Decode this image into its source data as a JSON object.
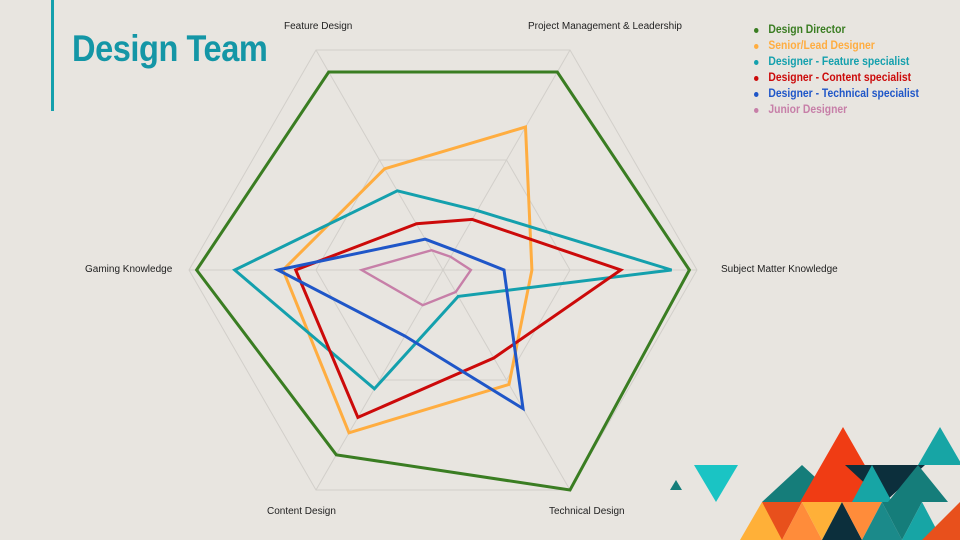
{
  "slide": {
    "title": "Design Team",
    "accent_color": "#14a0ad",
    "background": "#e8e5e0"
  },
  "chart_data": {
    "type": "radar",
    "title": "",
    "axes": [
      "Feature Design",
      "Project Management & Leadership",
      "Subject Matter Knowledge",
      "Technical Design",
      "Content Design",
      "Gaming Knowledge"
    ],
    "range": [
      0,
      10
    ],
    "grid": true,
    "grid_levels": 2,
    "legend_position": "top-right",
    "series": [
      {
        "name": "Design Director",
        "color": "#3a7d22",
        "values": [
          9.0,
          9.0,
          9.7,
          10.0,
          8.4,
          9.7
        ]
      },
      {
        "name": "Senior/Lead Designer",
        "color": "#ffad40",
        "values": [
          4.6,
          6.5,
          3.5,
          5.2,
          7.4,
          6.3
        ]
      },
      {
        "name": "Designer - Feature specialist",
        "color": "#14a0ad",
        "values": [
          3.6,
          2.7,
          9.0,
          1.2,
          5.4,
          8.2
        ]
      },
      {
        "name": "Designer - Content specialist",
        "color": "#cc0a0a",
        "values": [
          2.1,
          2.3,
          7.0,
          4.0,
          6.7,
          5.8
        ]
      },
      {
        "name": "Designer - Technical specialist",
        "color": "#1f56c8",
        "values": [
          1.4,
          0.9,
          2.4,
          6.3,
          3.0,
          6.5
        ]
      },
      {
        "name": "Junior Designer",
        "color": "#c77fa8",
        "values": [
          0.9,
          0.6,
          1.1,
          1.0,
          1.6,
          3.2
        ]
      }
    ]
  },
  "decor": {
    "triangles": [
      {
        "color": "#1ab8b8"
      },
      {
        "color": "#157d7a"
      },
      {
        "color": "#f03c14"
      },
      {
        "color": "#0c2f3c"
      },
      {
        "color": "#ff8c3a"
      },
      {
        "color": "#17a5a5"
      },
      {
        "color": "#ffb038"
      },
      {
        "color": "#e8501c"
      },
      {
        "color": "#1b8a8a"
      }
    ]
  }
}
